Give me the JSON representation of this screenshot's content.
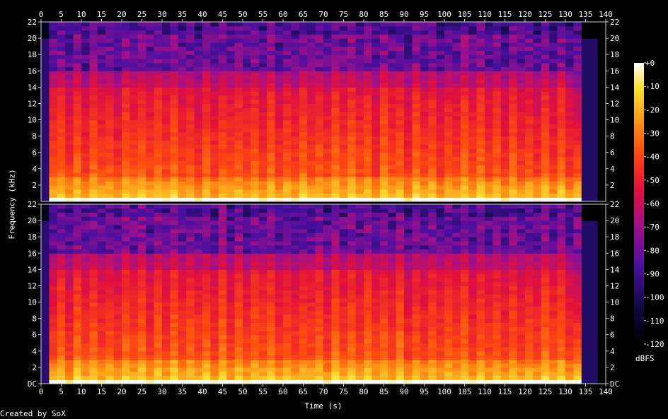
{
  "chart_data": {
    "type": "heatmap",
    "title": "",
    "xlabel": "Time (s)",
    "ylabel": "Frequency (kHz)",
    "xlim": [
      0,
      140
    ],
    "ylim": [
      0,
      22
    ],
    "x_ticks": [
      "0",
      "5",
      "10",
      "15",
      "20",
      "25",
      "30",
      "35",
      "40",
      "45",
      "50",
      "55",
      "60",
      "65",
      "70",
      "75",
      "80",
      "85",
      "90",
      "95",
      "100",
      "105",
      "110",
      "115",
      "120",
      "125",
      "130",
      "135",
      "140"
    ],
    "y_ticks_top": [
      "2",
      "4",
      "6",
      "8",
      "10",
      "12",
      "14",
      "16",
      "18",
      "20",
      "22"
    ],
    "y_ticks_bottom": [
      "DC",
      "2",
      "4",
      "6",
      "8",
      "10",
      "12",
      "14",
      "16",
      "18",
      "20",
      "22"
    ],
    "colorbar": {
      "label": "dBFS",
      "ticks": [
        "+0",
        "-10",
        "-20",
        "-30",
        "-40",
        "-50",
        "-60",
        "-70",
        "-80",
        "-90",
        "-100",
        "-110",
        "-120"
      ],
      "range": [
        -120,
        0
      ]
    },
    "channels": 2,
    "lowpass_cutoff_khz": 16,
    "audio_duration_s": 134,
    "credit": "Created by SoX",
    "colors": {
      "background": "#000000",
      "low": "#000000",
      "mid_low": "#3a1080",
      "mid": "#c0007a",
      "mid_high": "#ff3c14",
      "high": "#ffd020",
      "peak": "#ffffff"
    }
  }
}
